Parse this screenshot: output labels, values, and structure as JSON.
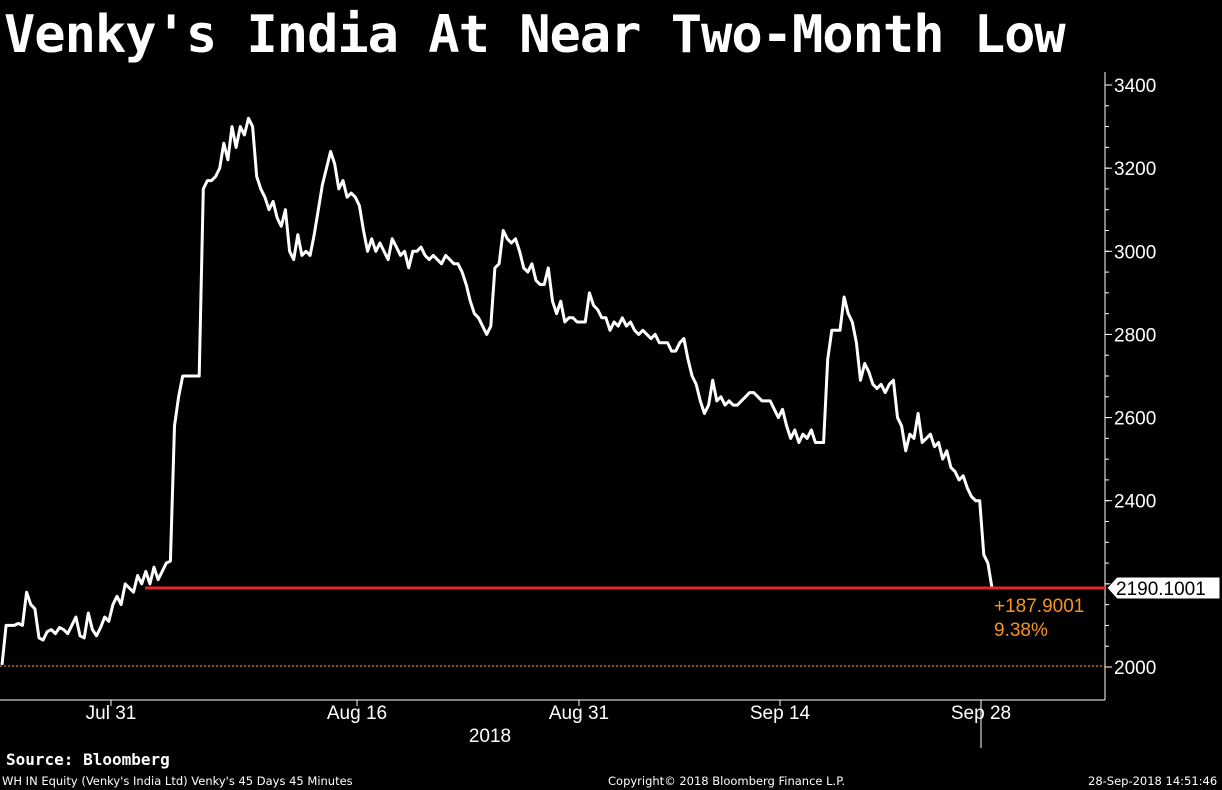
{
  "header": {
    "title": "Venky's India At Near Two-Month Low"
  },
  "footer": {
    "source": "Source: Bloomberg",
    "left": "WH IN Equity (Venky's India Ltd) Venky's 45 Days 45 Minutes",
    "center": "Copyright© 2018 Bloomberg Finance L.P.",
    "right": "28-Sep-2018 14:51:46"
  },
  "colors": {
    "line": "#ffffff",
    "reference": "#e8262b",
    "baseline": "#f7941d",
    "annotation": "#f7941d"
  },
  "chart_data": {
    "type": "line",
    "title": "Venky's India At Near Two-Month Low",
    "ylim": [
      1950,
      3450
    ],
    "y_ticks": [
      2000,
      2200,
      2400,
      2600,
      2800,
      3000,
      3200,
      3400
    ],
    "y_tick_labels": [
      "2000",
      "",
      "2400",
      "2600",
      "2800",
      "3000",
      "3200",
      "3400"
    ],
    "x_ticks": [
      "Jul 31",
      "Aug 16",
      "Aug 31",
      "Sep 14",
      "Sep 28"
    ],
    "x_year_label": "2018",
    "grid": false,
    "last_value": 2190.1001,
    "last_value_label": "2190.1001",
    "reference_level": 2190.1001,
    "baseline_level": 2002.2,
    "change_label": "+187.9001",
    "change_pct_label": "9.38%",
    "series": [
      {
        "values": [
          2005,
          2100,
          2100,
          2100,
          2105,
          2100,
          2180,
          2150,
          2140,
          2070,
          2065,
          2085,
          2090,
          2080,
          2095,
          2090,
          2080,
          2100,
          2120,
          2075,
          2070,
          2130,
          2090,
          2075,
          2095,
          2120,
          2110,
          2150,
          2170,
          2150,
          2200,
          2190,
          2180,
          2220,
          2200,
          2230,
          2200,
          2240,
          2210,
          2230,
          2250,
          2255,
          2580,
          2650,
          2700,
          2700,
          2700,
          2700,
          2700,
          3150,
          3170,
          3170,
          3180,
          3200,
          3260,
          3220,
          3300,
          3250,
          3300,
          3280,
          3320,
          3300,
          3180,
          3150,
          3130,
          3100,
          3120,
          3080,
          3060,
          3100,
          3000,
          2980,
          3040,
          2990,
          3000,
          2990,
          3040,
          3100,
          3160,
          3200,
          3240,
          3210,
          3150,
          3170,
          3130,
          3140,
          3130,
          3110,
          3050,
          3000,
          3030,
          3000,
          3020,
          3000,
          2980,
          3030,
          3010,
          2990,
          3000,
          2960,
          3000,
          3000,
          3010,
          2990,
          2980,
          2990,
          2980,
          2970,
          2990,
          2980,
          2970,
          2970,
          2950,
          2920,
          2880,
          2850,
          2840,
          2820,
          2800,
          2820,
          2960,
          2970,
          3050,
          3030,
          3020,
          3030,
          3000,
          2960,
          2950,
          2970,
          2930,
          2920,
          2920,
          2960,
          2880,
          2850,
          2880,
          2830,
          2840,
          2840,
          2830,
          2830,
          2830,
          2900,
          2870,
          2860,
          2840,
          2840,
          2810,
          2830,
          2820,
          2840,
          2820,
          2830,
          2810,
          2800,
          2810,
          2800,
          2790,
          2800,
          2780,
          2780,
          2780,
          2760,
          2760,
          2780,
          2790,
          2740,
          2700,
          2680,
          2640,
          2610,
          2630,
          2690,
          2640,
          2650,
          2630,
          2640,
          2630,
          2630,
          2640,
          2650,
          2660,
          2660,
          2650,
          2640,
          2640,
          2640,
          2620,
          2600,
          2620,
          2580,
          2550,
          2570,
          2540,
          2560,
          2550,
          2570,
          2540,
          2540,
          2540,
          2740,
          2810,
          2810,
          2810,
          2890,
          2850,
          2830,
          2780,
          2690,
          2730,
          2710,
          2680,
          2670,
          2680,
          2660,
          2680,
          2690,
          2600,
          2580,
          2520,
          2560,
          2550,
          2610,
          2540,
          2550,
          2560,
          2530,
          2540,
          2500,
          2520,
          2480,
          2470,
          2450,
          2460,
          2430,
          2410,
          2400,
          2400,
          2270,
          2250,
          2190
        ]
      }
    ]
  }
}
